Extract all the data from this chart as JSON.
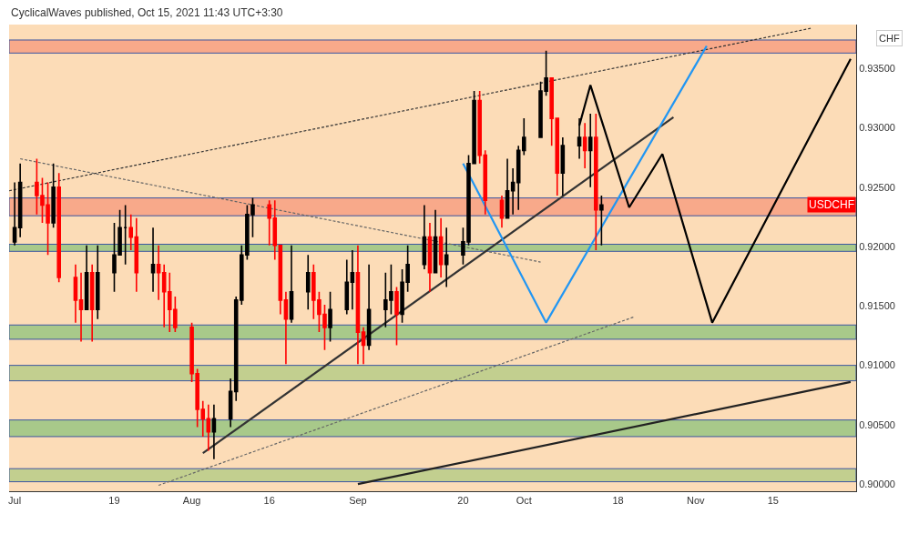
{
  "chart_data": {
    "type": "candlestick",
    "annotations": [
      "CyclicalWaves published, Oct 15, 2021 11:43 UTC+3:30",
      "USDCHF"
    ],
    "ylabel": "CHF",
    "x": [
      "2021-07-01",
      "2021-07-02",
      "2021-07-05",
      "2021-07-06",
      "2021-07-07",
      "2021-07-08",
      "2021-07-09",
      "2021-07-12",
      "2021-07-13",
      "2021-07-14",
      "2021-07-15",
      "2021-07-16",
      "2021-07-19",
      "2021-07-20",
      "2021-07-21",
      "2021-07-22",
      "2021-07-23",
      "2021-07-26",
      "2021-07-27",
      "2021-07-28",
      "2021-07-29",
      "2021-07-30",
      "2021-08-02",
      "2021-08-03",
      "2021-08-04",
      "2021-08-05",
      "2021-08-06",
      "2021-08-09",
      "2021-08-10",
      "2021-08-11",
      "2021-08-12",
      "2021-08-13",
      "2021-08-16",
      "2021-08-17",
      "2021-08-18",
      "2021-08-19",
      "2021-08-20",
      "2021-08-23",
      "2021-08-24",
      "2021-08-25",
      "2021-08-26",
      "2021-08-27",
      "2021-08-30",
      "2021-08-31",
      "2021-09-01",
      "2021-09-02",
      "2021-09-03",
      "2021-09-06",
      "2021-09-07",
      "2021-09-08",
      "2021-09-09",
      "2021-09-10",
      "2021-09-13",
      "2021-09-14",
      "2021-09-15",
      "2021-09-16",
      "2021-09-17",
      "2021-09-20",
      "2021-09-21",
      "2021-09-22",
      "2021-09-23",
      "2021-09-24",
      "2021-09-27",
      "2021-09-28",
      "2021-09-29",
      "2021-09-30",
      "2021-10-01",
      "2021-10-04",
      "2021-10-05",
      "2021-10-06",
      "2021-10-07",
      "2021-10-08",
      "2021-10-11",
      "2021-10-12",
      "2021-10-13",
      "2021-10-14",
      "2021-10-15"
    ],
    "ohlc": [
      [
        0.9204,
        0.9254,
        0.9201,
        0.9216
      ],
      [
        0.9216,
        0.927,
        0.9208,
        0.9254
      ],
      [
        0.9254,
        0.9274,
        0.9227,
        0.9243
      ],
      [
        0.9243,
        0.9258,
        0.922,
        0.9235
      ],
      [
        0.9235,
        0.9254,
        0.9193,
        0.922
      ],
      [
        0.922,
        0.927,
        0.9216,
        0.925
      ],
      [
        0.925,
        0.9262,
        0.917,
        0.9174
      ],
      [
        0.9174,
        0.9185,
        0.9136,
        0.9155
      ],
      [
        0.9155,
        0.9178,
        0.912,
        0.9147
      ],
      [
        0.9147,
        0.9201,
        0.9147,
        0.9178
      ],
      [
        0.9178,
        0.9185,
        0.912,
        0.9147
      ],
      [
        0.9147,
        0.9201,
        0.9139,
        0.9178
      ],
      [
        0.9178,
        0.922,
        0.9162,
        0.9193
      ],
      [
        0.9193,
        0.9231,
        0.9193,
        0.9216
      ],
      [
        0.9216,
        0.9235,
        0.9185,
        0.9216
      ],
      [
        0.9216,
        0.9227,
        0.9197,
        0.9208
      ],
      [
        0.9208,
        0.9224,
        0.9162,
        0.9178
      ],
      [
        0.9178,
        0.9216,
        0.9162,
        0.9185
      ],
      [
        0.9185,
        0.9201,
        0.9155,
        0.9178
      ],
      [
        0.9178,
        0.9185,
        0.9132,
        0.9162
      ],
      [
        0.9162,
        0.9178,
        0.9128,
        0.9147
      ],
      [
        0.9147,
        0.9158,
        0.9128,
        0.9132
      ],
      [
        0.9132,
        0.9136,
        0.9086,
        0.9093
      ],
      [
        0.9093,
        0.9097,
        0.9048,
        0.9063
      ],
      [
        0.9063,
        0.907,
        0.904,
        0.9055
      ],
      [
        0.9055,
        0.9067,
        0.9028,
        0.9044
      ],
      [
        0.9044,
        0.9067,
        0.9021,
        0.9055
      ],
      [
        0.9055,
        0.9089,
        0.9048,
        0.9078
      ],
      [
        0.9078,
        0.9158,
        0.907,
        0.9155
      ],
      [
        0.9155,
        0.9201,
        0.9151,
        0.9193
      ],
      [
        0.9193,
        0.9235,
        0.9189,
        0.9227
      ],
      [
        0.9227,
        0.9241,
        0.9208,
        0.9235
      ],
      [
        0.9235,
        0.9239,
        0.9201,
        0.9224
      ],
      [
        0.9224,
        0.9239,
        0.9189,
        0.9201
      ],
      [
        0.9201,
        0.9201,
        0.9143,
        0.9155
      ],
      [
        0.9155,
        0.9162,
        0.9101,
        0.9139
      ],
      [
        0.9139,
        0.9201,
        0.9136,
        0.9162
      ],
      [
        0.9162,
        0.9193,
        0.9147,
        0.9178
      ],
      [
        0.9178,
        0.9185,
        0.9139,
        0.9155
      ],
      [
        0.9155,
        0.9162,
        0.9128,
        0.9143
      ],
      [
        0.9143,
        0.9151,
        0.9113,
        0.9132
      ],
      [
        0.9132,
        0.9162,
        0.912,
        0.9147
      ],
      [
        0.9147,
        0.9189,
        0.9143,
        0.917
      ],
      [
        0.917,
        0.9197,
        0.9147,
        0.9178
      ],
      [
        0.9178,
        0.9201,
        0.9101,
        0.9128
      ],
      [
        0.9128,
        0.9132,
        0.9101,
        0.9117
      ],
      [
        0.9117,
        0.9185,
        0.9113,
        0.9147
      ],
      [
        0.9147,
        0.9178,
        0.9132,
        0.9155
      ],
      [
        0.9155,
        0.9185,
        0.9143,
        0.9162
      ],
      [
        0.9162,
        0.9166,
        0.9117,
        0.9143
      ],
      [
        0.9143,
        0.9181,
        0.9136,
        0.917
      ],
      [
        0.917,
        0.9201,
        0.9162,
        0.9185
      ],
      [
        0.9185,
        0.9235,
        0.9181,
        0.9208
      ],
      [
        0.9208,
        0.922,
        0.9162,
        0.9178
      ],
      [
        0.9178,
        0.9231,
        0.9178,
        0.9208
      ],
      [
        0.9208,
        0.9224,
        0.9174,
        0.9185
      ],
      [
        0.9185,
        0.9216,
        0.9166,
        0.9193
      ],
      [
        0.9193,
        0.9216,
        0.9185,
        0.9204
      ],
      [
        0.9204,
        0.9277,
        0.9201,
        0.927
      ],
      [
        0.927,
        0.9331,
        0.927,
        0.9323
      ],
      [
        0.9323,
        0.9331,
        0.927,
        0.9277
      ],
      [
        0.9277,
        0.9281,
        0.9227,
        0.9239
      ],
      [
        0.9239,
        0.9243,
        0.9216,
        0.9224
      ],
      [
        0.9224,
        0.9274,
        0.9224,
        0.9247
      ],
      [
        0.9247,
        0.9266,
        0.9227,
        0.9254
      ],
      [
        0.9254,
        0.9285,
        0.9231,
        0.9281
      ],
      [
        0.9281,
        0.9308,
        0.9277,
        0.9292
      ],
      [
        0.9292,
        0.9339,
        0.9292,
        0.9331
      ],
      [
        0.9331,
        0.9365,
        0.9327,
        0.9342
      ],
      [
        0.9342,
        0.9342,
        0.9285,
        0.9308
      ],
      [
        0.9308,
        0.9308,
        0.9243,
        0.9262
      ],
      [
        0.9262,
        0.9292,
        0.9243,
        0.9285
      ],
      [
        0.9285,
        0.9308,
        0.9274,
        0.9292
      ],
      [
        0.9292,
        0.9304,
        0.9266,
        0.9281
      ],
      [
        0.9281,
        0.9312,
        0.925,
        0.9292
      ],
      [
        0.9292,
        0.9312,
        0.9197,
        0.9231
      ],
      [
        0.9231,
        0.9243,
        0.9201,
        0.9235
      ]
    ],
    "series": [
      {
        "type": "line",
        "color": "#333333",
        "line_style": "dashed",
        "x": [
          "2021-06-30",
          "2021-11-22"
        ],
        "values": [
          0.9247,
          0.9384
        ]
      },
      {
        "type": "line",
        "color": "#666666",
        "line_style": "dashed",
        "x": [
          "2021-07-02",
          "2021-10-04"
        ],
        "values": [
          0.9274,
          0.9187
        ]
      },
      {
        "type": "line",
        "color": "#666666",
        "line_style": "dashed",
        "x": [
          "2021-07-27",
          "2021-10-21"
        ],
        "values": [
          0.8999,
          0.9141
        ]
      },
      {
        "type": "line",
        "color": "#333333",
        "line_style": "solid",
        "x": [
          "2021-08-04",
          "2021-10-28"
        ],
        "values": [
          0.9026,
          0.9309
        ]
      },
      {
        "type": "line",
        "color": "#222222",
        "line_style": "solid",
        "x": [
          "2021-09-01",
          "2021-11-29"
        ],
        "values": [
          0.9,
          0.9086
        ]
      },
      {
        "type": "line",
        "color": "#2196f3",
        "line_style": "solid",
        "x": [
          "2021-09-20",
          "2021-10-05",
          "2021-11-03"
        ],
        "values": [
          0.927,
          0.9136,
          0.9369
        ]
      },
      {
        "type": "line",
        "color": "#000000",
        "line_style": "solid",
        "x": [
          "2021-10-11",
          "2021-10-13",
          "2021-10-20",
          "2021-10-26",
          "2021-11-04",
          "2021-11-29"
        ],
        "values": [
          0.9302,
          0.9336,
          0.9233,
          0.9278,
          0.9136,
          0.9358
        ]
      }
    ],
    "bands": [
      {
        "axis": "y",
        "from": 0.9363,
        "to": 0.9374,
        "color": "#f8a98a"
      },
      {
        "axis": "y",
        "from": 0.9226,
        "to": 0.9241,
        "color": "#f8a98a"
      },
      {
        "axis": "y",
        "from": 0.9196,
        "to": 0.9202,
        "color": "#a8c98a"
      },
      {
        "axis": "y",
        "from": 0.9122,
        "to": 0.9134,
        "color": "#a8c98a"
      },
      {
        "axis": "y",
        "from": 0.9087,
        "to": 0.91,
        "color": "#c2cf8f"
      },
      {
        "axis": "y",
        "from": 0.904,
        "to": 0.9054,
        "color": "#a8c98a"
      },
      {
        "axis": "y",
        "from": 0.9002,
        "to": 0.9013,
        "color": "#c2cf8f"
      }
    ],
    "xlim": [
      "2021-06-30",
      "2021-11-30"
    ],
    "xticks": [
      {
        "value": "2021-07-01",
        "label": "Jul"
      },
      {
        "value": "2021-07-19",
        "label": "19"
      },
      {
        "value": "2021-08-02",
        "label": "Aug"
      },
      {
        "value": "2021-08-16",
        "label": "16"
      },
      {
        "value": "2021-09-01",
        "label": "Sep"
      },
      {
        "value": "2021-09-20",
        "label": "20"
      },
      {
        "value": "2021-10-01",
        "label": "Oct"
      },
      {
        "value": "2021-10-18",
        "label": "18"
      },
      {
        "value": "2021-11-01",
        "label": "Nov"
      },
      {
        "value": "2021-11-15",
        "label": "15"
      }
    ],
    "ylim": [
      0.8994,
      0.9387
    ],
    "yticks": [
      {
        "value": 0.9,
        "label": "0.90000"
      },
      {
        "value": 0.905,
        "label": "0.90500"
      },
      {
        "value": 0.91,
        "label": "0.91000"
      },
      {
        "value": 0.915,
        "label": "0.91500"
      },
      {
        "value": 0.92,
        "label": "0.92000"
      },
      {
        "value": 0.925,
        "label": "0.92500"
      },
      {
        "value": 0.93,
        "label": "0.93000"
      },
      {
        "value": 0.935,
        "label": "0.93500"
      }
    ],
    "grid": false
  }
}
